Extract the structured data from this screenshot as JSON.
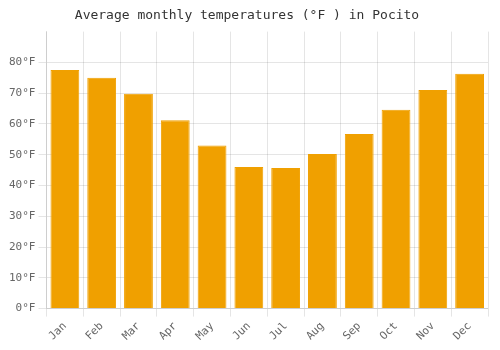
{
  "chart_data": {
    "type": "bar",
    "title": "Average monthly temperatures (°F ) in Pocito",
    "categories": [
      "Jan",
      "Feb",
      "Mar",
      "Apr",
      "May",
      "Jun",
      "Jul",
      "Aug",
      "Sep",
      "Oct",
      "Nov",
      "Dec"
    ],
    "values": [
      77.5,
      75.0,
      69.8,
      61.2,
      53.0,
      46.0,
      45.7,
      50.2,
      56.7,
      64.6,
      71.0,
      76.3
    ],
    "color": "#F0A000",
    "ylim": [
      0,
      90
    ],
    "yticks": [
      {
        "value": 0,
        "label": "0°F"
      },
      {
        "value": 10,
        "label": "10°F"
      },
      {
        "value": 20,
        "label": "20°F"
      },
      {
        "value": 30,
        "label": "30°F"
      },
      {
        "value": 40,
        "label": "40°F"
      },
      {
        "value": 50,
        "label": "50°F"
      },
      {
        "value": 60,
        "label": "60°F"
      },
      {
        "value": 70,
        "label": "70°F"
      },
      {
        "value": 80,
        "label": "80°F"
      }
    ],
    "grid": true
  }
}
